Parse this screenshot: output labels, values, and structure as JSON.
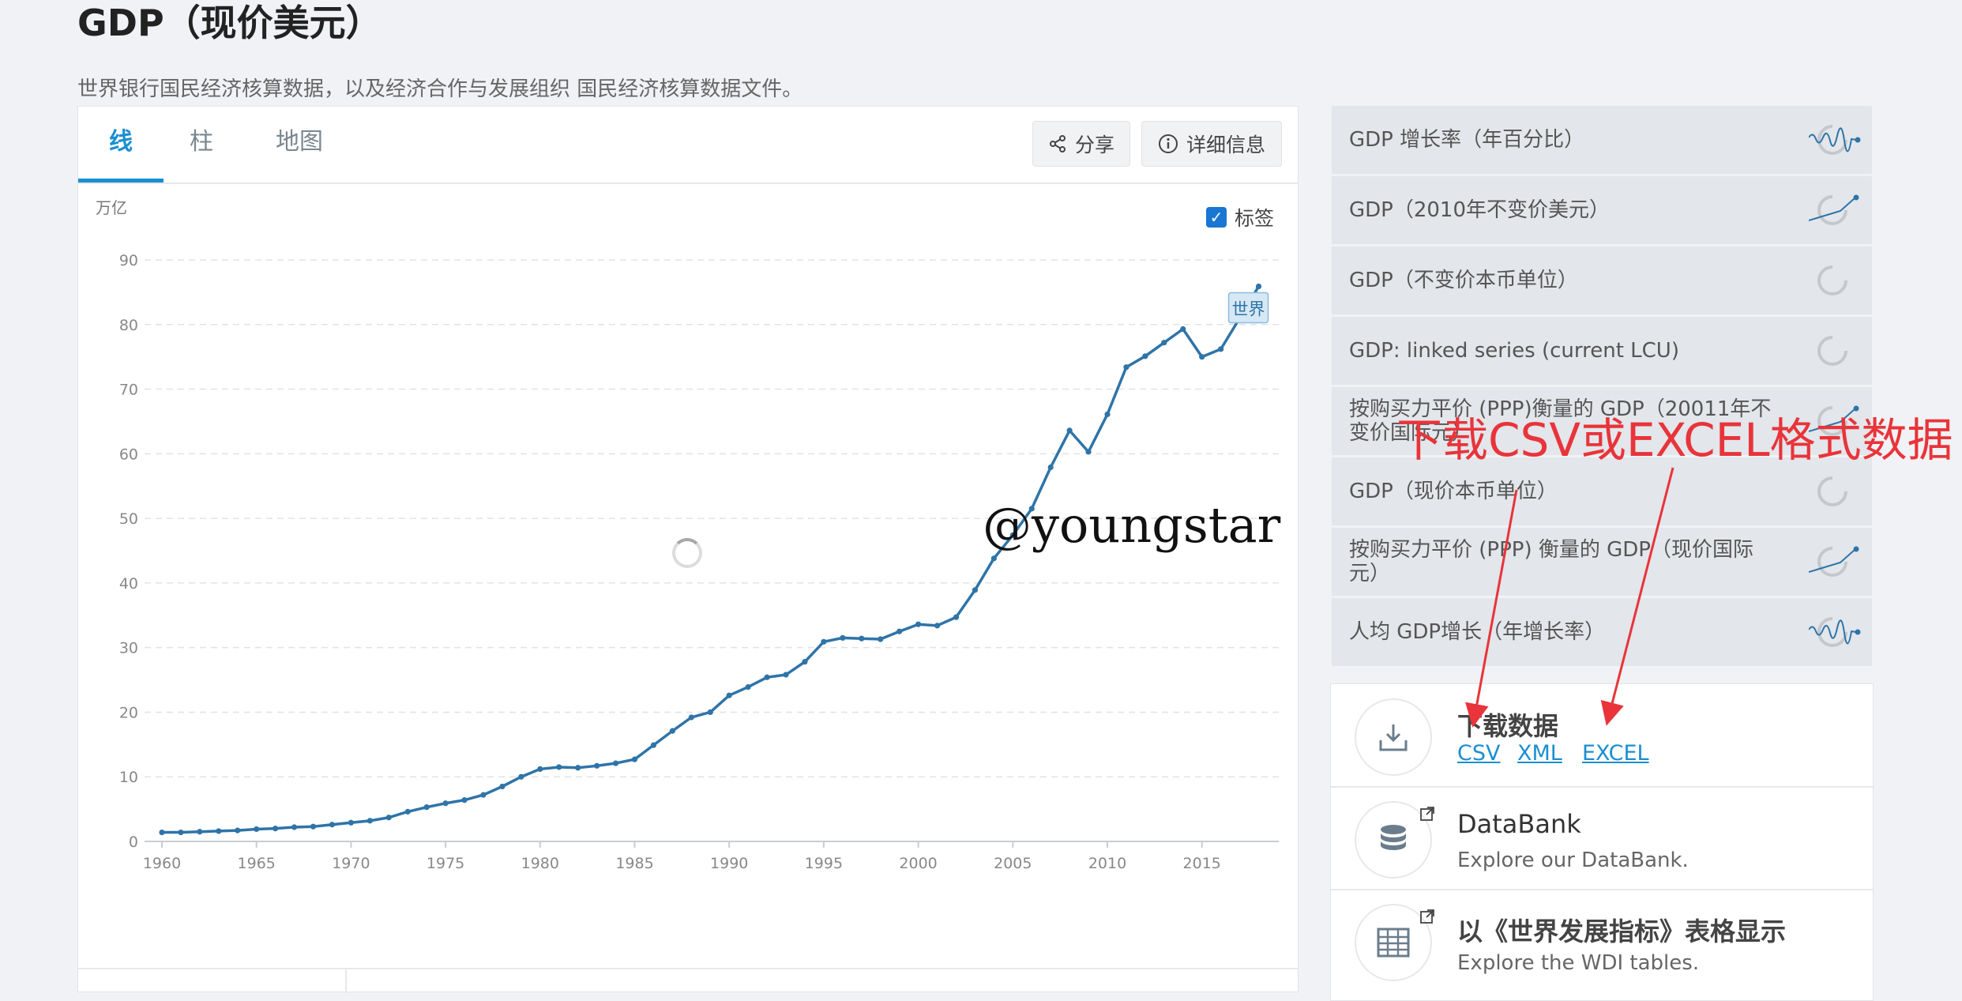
{
  "page": {
    "title": "GDP（现价美元）",
    "subtitle": "世界银行国民经济核算数据，以及经济合作与发展组织 国民经济核算数据文件。"
  },
  "tabs": [
    {
      "label": "线",
      "active": true
    },
    {
      "label": "柱",
      "active": false
    },
    {
      "label": "地图",
      "active": false
    }
  ],
  "toolbar": {
    "share_label": "分享",
    "details_label": "详细信息"
  },
  "chart_options": {
    "labels_label": "标签",
    "labels_checked": true
  },
  "chart_data": {
    "type": "line",
    "ylabel": "万亿",
    "ylim": [
      0,
      90
    ],
    "yticks": [
      0,
      10,
      20,
      30,
      40,
      50,
      60,
      70,
      80,
      90
    ],
    "xticks": [
      1960,
      1965,
      1970,
      1975,
      1980,
      1985,
      1990,
      1995,
      2000,
      2005,
      2010,
      2015
    ],
    "grid": true,
    "series": [
      {
        "name": "世界",
        "color": "#2e74a8",
        "x": [
          1960,
          1961,
          1962,
          1963,
          1964,
          1965,
          1966,
          1967,
          1968,
          1969,
          1970,
          1971,
          1972,
          1973,
          1974,
          1975,
          1976,
          1977,
          1978,
          1979,
          1980,
          1981,
          1982,
          1983,
          1984,
          1985,
          1986,
          1987,
          1988,
          1989,
          1990,
          1991,
          1992,
          1993,
          1994,
          1995,
          1996,
          1997,
          1998,
          1999,
          2000,
          2001,
          2002,
          2003,
          2004,
          2005,
          2006,
          2007,
          2008,
          2009,
          2010,
          2011,
          2012,
          2013,
          2014,
          2015,
          2016,
          2017,
          2018
        ],
        "values": [
          1.4,
          1.4,
          1.5,
          1.6,
          1.7,
          1.9,
          2.0,
          2.2,
          2.3,
          2.6,
          2.9,
          3.2,
          3.7,
          4.6,
          5.3,
          5.9,
          6.4,
          7.2,
          8.5,
          10.0,
          11.2,
          11.5,
          11.4,
          11.7,
          12.1,
          12.7,
          14.9,
          17.1,
          19.2,
          20.0,
          22.6,
          23.9,
          25.4,
          25.8,
          27.8,
          30.9,
          31.5,
          31.4,
          31.3,
          32.5,
          33.6,
          33.4,
          34.7,
          38.9,
          43.8,
          47.4,
          51.5,
          57.9,
          63.6,
          60.3,
          66.1,
          73.4,
          75.1,
          77.2,
          79.3,
          75.0,
          76.2,
          81.0,
          85.9
        ]
      }
    ],
    "annotations": [
      "世界"
    ]
  },
  "indicators": [
    {
      "label": "GDP 增长率（年百分比）",
      "thumb": "wave"
    },
    {
      "label": "GDP（2010年不变价美元）",
      "thumb": "rise"
    },
    {
      "label": "GDP（不变价本币单位）",
      "thumb": "spinner"
    },
    {
      "label": "GDP: linked series (current LCU)",
      "thumb": "spinner"
    },
    {
      "label": "按购买力平价 (PPP)衡量的 GDP（20011年不变价国际元）",
      "thumb": "rise"
    },
    {
      "label": "GDP（现价本币单位）",
      "thumb": "spinner"
    },
    {
      "label": "按购买力平价 (PPP) 衡量的 GDP（现价国际元）",
      "thumb": "rise"
    },
    {
      "label": "人均 GDP增长（年增长率）",
      "thumb": "wave"
    }
  ],
  "annotation_text": "下载CSV或EXCEL格式数据",
  "watermark": "@youngstar",
  "download": {
    "title": "下载数据",
    "links": [
      "CSV",
      "XML",
      "EXCEL"
    ]
  },
  "databank": {
    "title": "DataBank",
    "desc": "Explore our DataBank."
  },
  "wdi": {
    "title": "以《世界发展指标》表格显示",
    "desc": "Explore the WDI tables."
  },
  "colors": {
    "accent": "#1a8fd0",
    "line": "#2e74a8",
    "annotation": "#e8343a"
  }
}
